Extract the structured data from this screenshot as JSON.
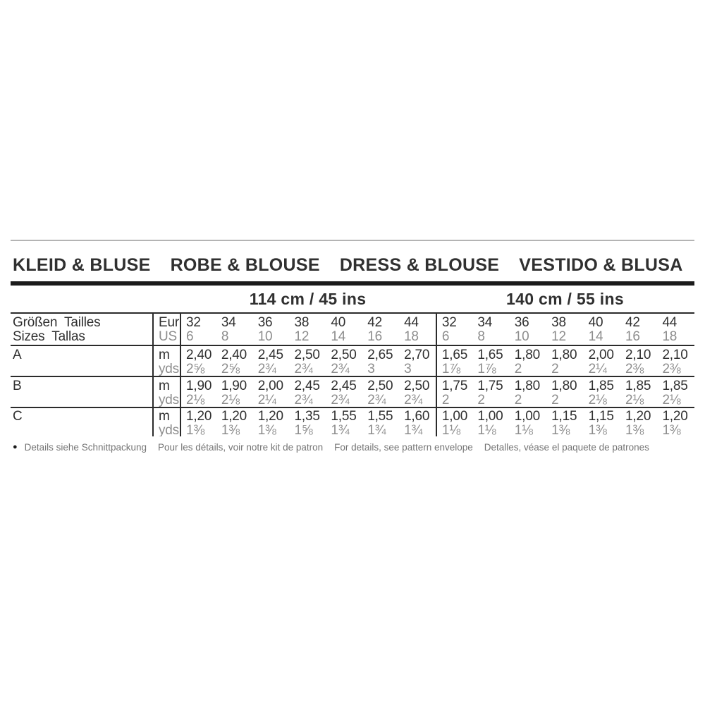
{
  "colors": {
    "background": "#ffffff",
    "text_dark": "#303030",
    "text_gray": "#8d8d8d",
    "line_dark": "#2b2b2b",
    "thick_bar": "#1b1b1b",
    "top_rule": "#b4b4b4",
    "footer_text": "#757575"
  },
  "title": {
    "segments": [
      "KLEID & BLUSE",
      "ROBE & BLOUSE",
      "DRESS & BLOUSE",
      "VESTIDO & BLUSA"
    ]
  },
  "fabric_widths": [
    {
      "label": "114 cm / 45 ins"
    },
    {
      "label": "140 cm / 55 ins"
    }
  ],
  "size_table": {
    "header_row": {
      "label_line1": "Größen  Tailles",
      "label_line2": "Sizes  Tallas",
      "unit_line1": "Eur",
      "unit_line2": "US",
      "groups": [
        {
          "eur": [
            "32",
            "34",
            "36",
            "38",
            "40",
            "42",
            "44"
          ],
          "us": [
            "6",
            "8",
            "10",
            "12",
            "14",
            "16",
            "18"
          ]
        },
        {
          "eur": [
            "32",
            "34",
            "36",
            "38",
            "40",
            "42",
            "44"
          ],
          "us": [
            "6",
            "8",
            "10",
            "12",
            "14",
            "16",
            "18"
          ]
        }
      ]
    },
    "rows": [
      {
        "label": "A",
        "unit_line1": "m",
        "unit_line2": "yds",
        "groups": [
          {
            "m": [
              "2,40",
              "2,40",
              "2,45",
              "2,50",
              "2,50",
              "2,65",
              "2,70"
            ],
            "yds": [
              "2⅝",
              "2⅝",
              "2¾",
              "2¾",
              "2¾",
              "3",
              "3"
            ]
          },
          {
            "m": [
              "1,65",
              "1,65",
              "1,80",
              "1,80",
              "2,00",
              "2,10",
              "2,10"
            ],
            "yds": [
              "1⅞",
              "1⅞",
              "2",
              "2",
              "2¼",
              "2⅜",
              "2⅜"
            ]
          }
        ]
      },
      {
        "label": "B",
        "unit_line1": "m",
        "unit_line2": "yds",
        "groups": [
          {
            "m": [
              "1,90",
              "1,90",
              "2,00",
              "2,45",
              "2,45",
              "2,50",
              "2,50"
            ],
            "yds": [
              "2⅛",
              "2⅛",
              "2¼",
              "2¾",
              "2¾",
              "2¾",
              "2¾"
            ]
          },
          {
            "m": [
              "1,75",
              "1,75",
              "1,80",
              "1,80",
              "1,85",
              "1,85",
              "1,85"
            ],
            "yds": [
              "2",
              "2",
              "2",
              "2",
              "2⅛",
              "2⅛",
              "2⅛"
            ]
          }
        ]
      },
      {
        "label": "C",
        "unit_line1": "m",
        "unit_line2": "yds",
        "groups": [
          {
            "m": [
              "1,20",
              "1,20",
              "1,20",
              "1,35",
              "1,55",
              "1,55",
              "1,60"
            ],
            "yds": [
              "1⅜",
              "1⅜",
              "1⅜",
              "1⅝",
              "1¾",
              "1¾",
              "1¾"
            ]
          },
          {
            "m": [
              "1,00",
              "1,00",
              "1,00",
              "1,15",
              "1,15",
              "1,20",
              "1,20"
            ],
            "yds": [
              "1⅛",
              "1⅛",
              "1⅛",
              "1⅜",
              "1⅜",
              "1⅜",
              "1⅜"
            ]
          }
        ]
      }
    ]
  },
  "footer": {
    "bullet": "●",
    "notes": [
      "Details siehe Schnittpackung",
      "Pour les détails, voir notre kit de patron",
      "For details, see pattern envelope",
      "Detalles, véase el paquete de patrones"
    ]
  }
}
